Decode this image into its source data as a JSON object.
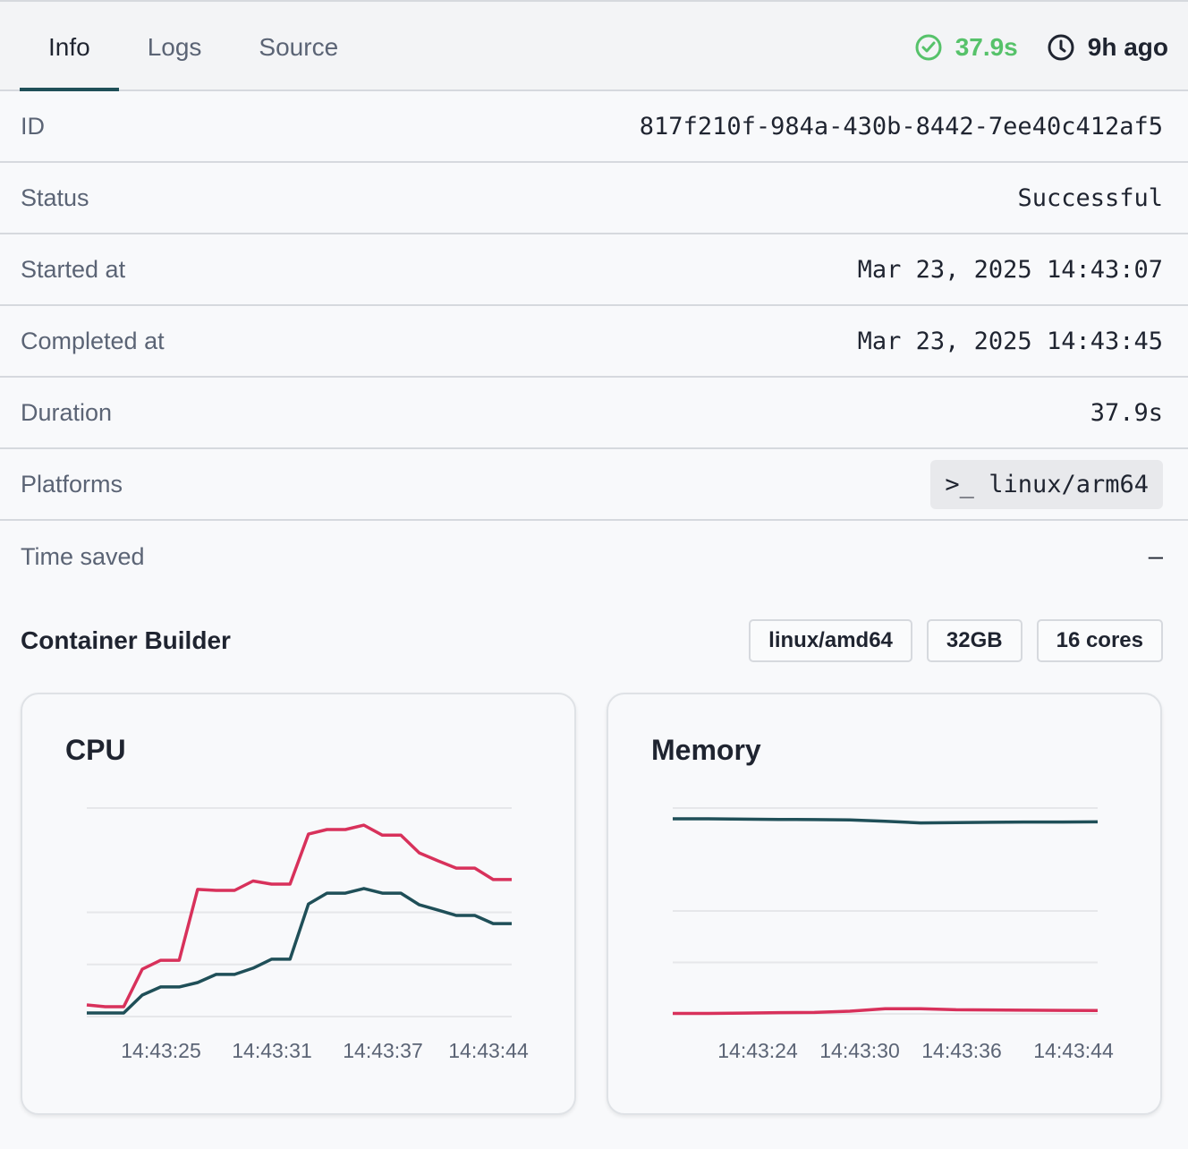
{
  "tabs": [
    {
      "label": "Info",
      "active": true
    },
    {
      "label": "Logs"
    },
    {
      "label": "Source"
    }
  ],
  "header": {
    "duration": "37.9s",
    "ago": "9h ago",
    "duration_icon": "check-circle-icon",
    "ago_icon": "clock-icon",
    "success_color": "#56c26a"
  },
  "details": [
    {
      "label": "ID",
      "value": "817f210f-984a-430b-8442-7ee40c412af5"
    },
    {
      "label": "Status",
      "value": "Successful"
    },
    {
      "label": "Started at",
      "value": "Mar 23, 2025 14:43:07"
    },
    {
      "label": "Completed at",
      "value": "Mar 23, 2025 14:43:45"
    },
    {
      "label": "Duration",
      "value": "37.9s"
    },
    {
      "label": "Platforms",
      "value": "linux/arm64",
      "icon": "terminal-icon",
      "icon_text": ">_"
    },
    {
      "label": "Time saved",
      "value": "–"
    }
  ],
  "builder": {
    "title": "Container Builder",
    "tags": [
      "linux/amd64",
      "32GB",
      "16 cores"
    ]
  },
  "chart_data": [
    {
      "type": "line",
      "title": "CPU",
      "ylim": [
        0,
        100
      ],
      "grid": [
        0,
        25,
        50,
        100
      ],
      "xticks": [
        "14:43:25",
        "14:43:31",
        "14:43:37",
        "14:43:44"
      ],
      "series": [
        {
          "name": "series-red",
          "color": "#d8315b",
          "values": [
            5.6,
            4.7,
            4.7,
            22.7,
            27,
            27,
            61,
            60.5,
            60.5,
            65,
            63.5,
            63.5,
            87.5,
            89.7,
            89.7,
            91.8,
            87,
            87,
            78.5,
            74.7,
            71.2,
            71.2,
            65.7,
            65.7
          ]
        },
        {
          "name": "series-teal",
          "color": "#1f4f58",
          "values": [
            1.7,
            1.7,
            1.7,
            10.3,
            14.2,
            14.2,
            16.3,
            20.2,
            20.2,
            23.2,
            27.5,
            27.5,
            54,
            59.2,
            59.2,
            61.4,
            59.2,
            59.2,
            53.6,
            51.1,
            48.5,
            48.5,
            44.6,
            44.6
          ]
        }
      ]
    },
    {
      "type": "line",
      "title": "Memory",
      "ylim": [
        0,
        100
      ],
      "grid": [
        0,
        25,
        50,
        100
      ],
      "xticks": [
        "14:43:24",
        "14:43:30",
        "14:43:36",
        "14:43:44"
      ],
      "series": [
        {
          "name": "series-teal",
          "color": "#1f4f58",
          "values": [
            94.8,
            94.8,
            94.6,
            94.5,
            94.4,
            94.2,
            93.6,
            92.8,
            92.9,
            93.1,
            93.2,
            93.2,
            93.3
          ]
        },
        {
          "name": "series-red",
          "color": "#d8315b",
          "values": [
            0.2,
            0.2,
            0.4,
            0.6,
            0.7,
            1.3,
            2.5,
            2.5,
            2.0,
            1.9,
            1.8,
            1.7,
            1.6
          ]
        }
      ]
    }
  ]
}
